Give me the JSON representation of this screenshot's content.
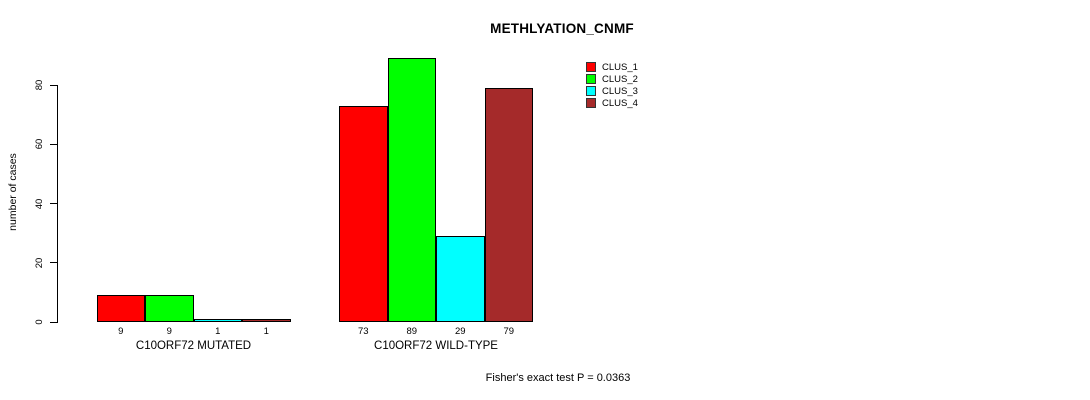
{
  "title": "METHLYATION_CNMF",
  "footnote": "Fisher's exact test P = 0.0363",
  "chart_data": {
    "type": "bar",
    "title": "METHLYATION_CNMF",
    "xlabel": "",
    "ylabel": "number of cases",
    "ylim": [
      0,
      89
    ],
    "yticks": [
      0,
      20,
      40,
      60,
      80
    ],
    "grid": false,
    "legend_position": "top-right",
    "categories": [
      "C10ORF72 MUTATED",
      "C10ORF72 WILD-TYPE"
    ],
    "series": [
      {
        "name": "CLUS_1",
        "color": "#ff0000",
        "values": [
          9,
          73
        ]
      },
      {
        "name": "CLUS_2",
        "color": "#00ff00",
        "values": [
          9,
          89
        ]
      },
      {
        "name": "CLUS_3",
        "color": "#00ffff",
        "values": [
          1,
          29
        ]
      },
      {
        "name": "CLUS_4",
        "color": "#a52a2a",
        "values": [
          1,
          79
        ]
      }
    ],
    "bar_value_labels": {
      "C10ORF72 MUTATED": [
        9,
        9,
        1,
        1
      ],
      "C10ORF72 WILD-TYPE": [
        73,
        89,
        29,
        79
      ]
    }
  }
}
